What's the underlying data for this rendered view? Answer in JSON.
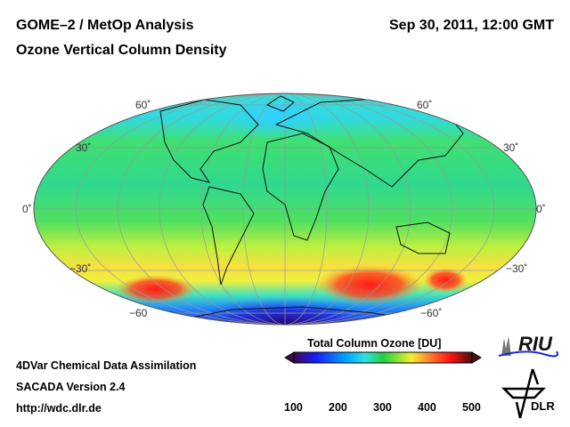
{
  "header": {
    "title": "GOME–2 / MetOp Analysis",
    "datetime": "Sep 30, 2011, 12:00 GMT",
    "subtitle": "Ozone Vertical Column Density"
  },
  "map": {
    "projection": "Mollweide",
    "lat_labels_left": [
      "60˚",
      "30˚",
      "0˚",
      "−30˚",
      "−60"
    ],
    "lat_labels_right": [
      "60˚",
      "30˚",
      "0˚",
      "−30˚",
      "−60˚"
    ]
  },
  "footer": {
    "line1": "4DVar Chemical Data Assimilation",
    "line2": "SACADA Version 2.4",
    "url": "http://wdc.dlr.de"
  },
  "colorbar": {
    "title": "Total Column Ozone [DU]",
    "ticks": [
      "100",
      "200",
      "300",
      "400",
      "500"
    ],
    "range": [
      100,
      500
    ],
    "colors": [
      "#3a0a4a",
      "#1a1aff",
      "#00aaff",
      "#30e0e0",
      "#20d040",
      "#f0f030",
      "#ff8030",
      "#ff1010",
      "#4a1010"
    ]
  },
  "logos": {
    "riu": "RIU",
    "dlr": "DLR"
  }
}
